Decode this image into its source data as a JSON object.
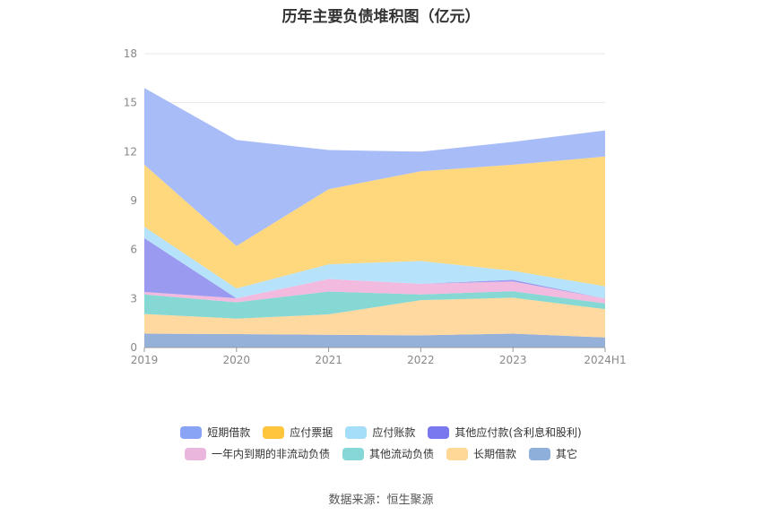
{
  "title": "历年主要负债堆积图（亿元）",
  "source": "数据来源：恒生聚源",
  "chart_data": {
    "type": "area",
    "stacked": true,
    "categories": [
      "2019",
      "2020",
      "2021",
      "2022",
      "2023",
      "2024H1"
    ],
    "ylim": [
      0,
      18
    ],
    "yticks": [
      0,
      3,
      6,
      9,
      12,
      15,
      18
    ],
    "legend_position": "bottom",
    "grid": true,
    "series": [
      {
        "name": "其它",
        "color": "#8fadd8",
        "values": [
          0.85,
          0.82,
          0.78,
          0.75,
          0.85,
          0.62
        ]
      },
      {
        "name": "长期借款",
        "color": "#ffd79b",
        "values": [
          1.2,
          0.95,
          1.25,
          2.15,
          2.2,
          1.73
        ]
      },
      {
        "name": "其他流动负债",
        "color": "#7fd6d2",
        "values": [
          1.2,
          1.0,
          1.4,
          0.35,
          0.4,
          0.35
        ]
      },
      {
        "name": "一年内到期的非流动负债",
        "color": "#f0b6dc",
        "values": [
          0.15,
          0.25,
          0.77,
          0.65,
          0.6,
          0.3
        ]
      },
      {
        "name": "其他应付款(含利息和股利)",
        "color": "#9595ef",
        "values": [
          3.3,
          0.0,
          0.0,
          0.0,
          0.1,
          0.0
        ]
      },
      {
        "name": "应付账款",
        "color": "#b2e2fb",
        "values": [
          0.7,
          0.6,
          0.9,
          1.4,
          0.55,
          0.75
        ]
      },
      {
        "name": "应付票据",
        "color": "#ffd677",
        "values": [
          3.8,
          2.6,
          4.6,
          5.5,
          6.5,
          7.95
        ]
      },
      {
        "name": "短期借款",
        "color": "#a3b8f7",
        "values": [
          4.7,
          6.5,
          2.4,
          1.2,
          1.4,
          1.6
        ]
      }
    ]
  },
  "legend": {
    "row1": [
      "短期借款",
      "应付票据",
      "应付账款",
      "其他应付款(含利息和股利)"
    ],
    "row2": [
      "一年内到期的非流动负债",
      "其他流动负债",
      "长期借款",
      "其它"
    ],
    "colors": {
      "短期借款": "#8aa4f5",
      "应付票据": "#ffc53d",
      "应付账款": "#a5def9",
      "其他应付款(含利息和股利)": "#7a78ee",
      "一年内到期的非流动负债": "#eab6de",
      "其他流动负债": "#86d8d6",
      "长期借款": "#ffd898",
      "其它": "#8fafdb"
    }
  }
}
